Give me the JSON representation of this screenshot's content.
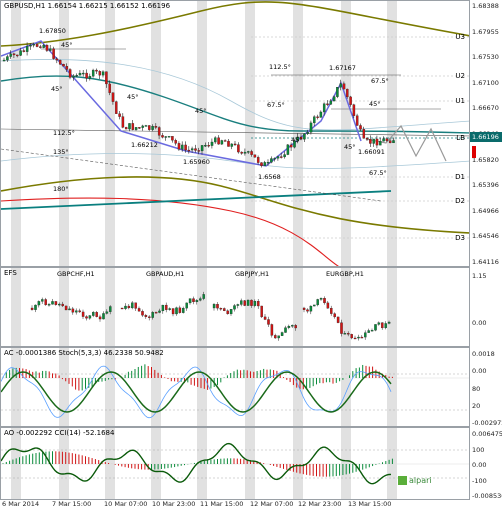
{
  "main": {
    "header": "GBPUSD,H1  1.66154 1.66215 1.66152 1.66196",
    "price_box": "1.66196",
    "axis_ticks": [
      "1.68388",
      "1.67955",
      "1.67530",
      "1.67100",
      "1.66670",
      "1.66240",
      "1.65820",
      "1.65396",
      "1.64966",
      "1.64546",
      "1.64116"
    ],
    "levels": [
      "U3",
      "U2",
      "U1",
      "LB",
      "D1",
      "D2",
      "D3"
    ],
    "annotations": {
      "p1": "1.67850",
      "p2": "1.66212",
      "p3": "1.65960",
      "p4": "1.6568",
      "p5": "1.67167",
      "p6": "1.66091",
      "a45a": "45°",
      "a45b": "45°",
      "a45c": "45°",
      "a45d": "45°",
      "a45e": "45°",
      "a45f": "45°",
      "a45g": "45°",
      "f112a": "112.5°",
      "f112b": "112.5°",
      "f675a": "67.5°",
      "f675b": "67.5°",
      "f675c": "67.5°",
      "f135": "135°",
      "f180": "180°"
    }
  },
  "cross": {
    "header": "EFS",
    "labels": [
      "GBPCHF,H1",
      "GBPAUD,H1",
      "GBPJPY,H1",
      "EURGBP,H1"
    ],
    "axis_ticks": [
      "1.15",
      "0.00"
    ]
  },
  "ac": {
    "header": "AC -0.0001386  Stoch(5,3,3) 46.2338 50.9482",
    "axis_ticks": [
      "0.0018",
      "0.00",
      "80",
      "20",
      "-0.002972"
    ]
  },
  "ao": {
    "header": "AO -0.002292  CCI(14) -52.1684",
    "axis_ticks": [
      "0.006475",
      "100",
      "0.00",
      "-100",
      "-0.008536"
    ]
  },
  "time_axis": [
    "6 Mar 2014",
    "7 Mar 15:00",
    "10 Mar 07:00",
    "10 Mar 23:00",
    "11 Mar 15:00",
    "12 Mar 07:00",
    "12 Mar 23:00",
    "13 Mar 15:00"
  ],
  "logo_text": "alpari",
  "colors": {
    "bull": "#0a8a3a",
    "bear": "#d01515",
    "trend": "#1a7f7f",
    "channel": "#7a7a00",
    "zigzag": "#6a6ae0"
  }
}
